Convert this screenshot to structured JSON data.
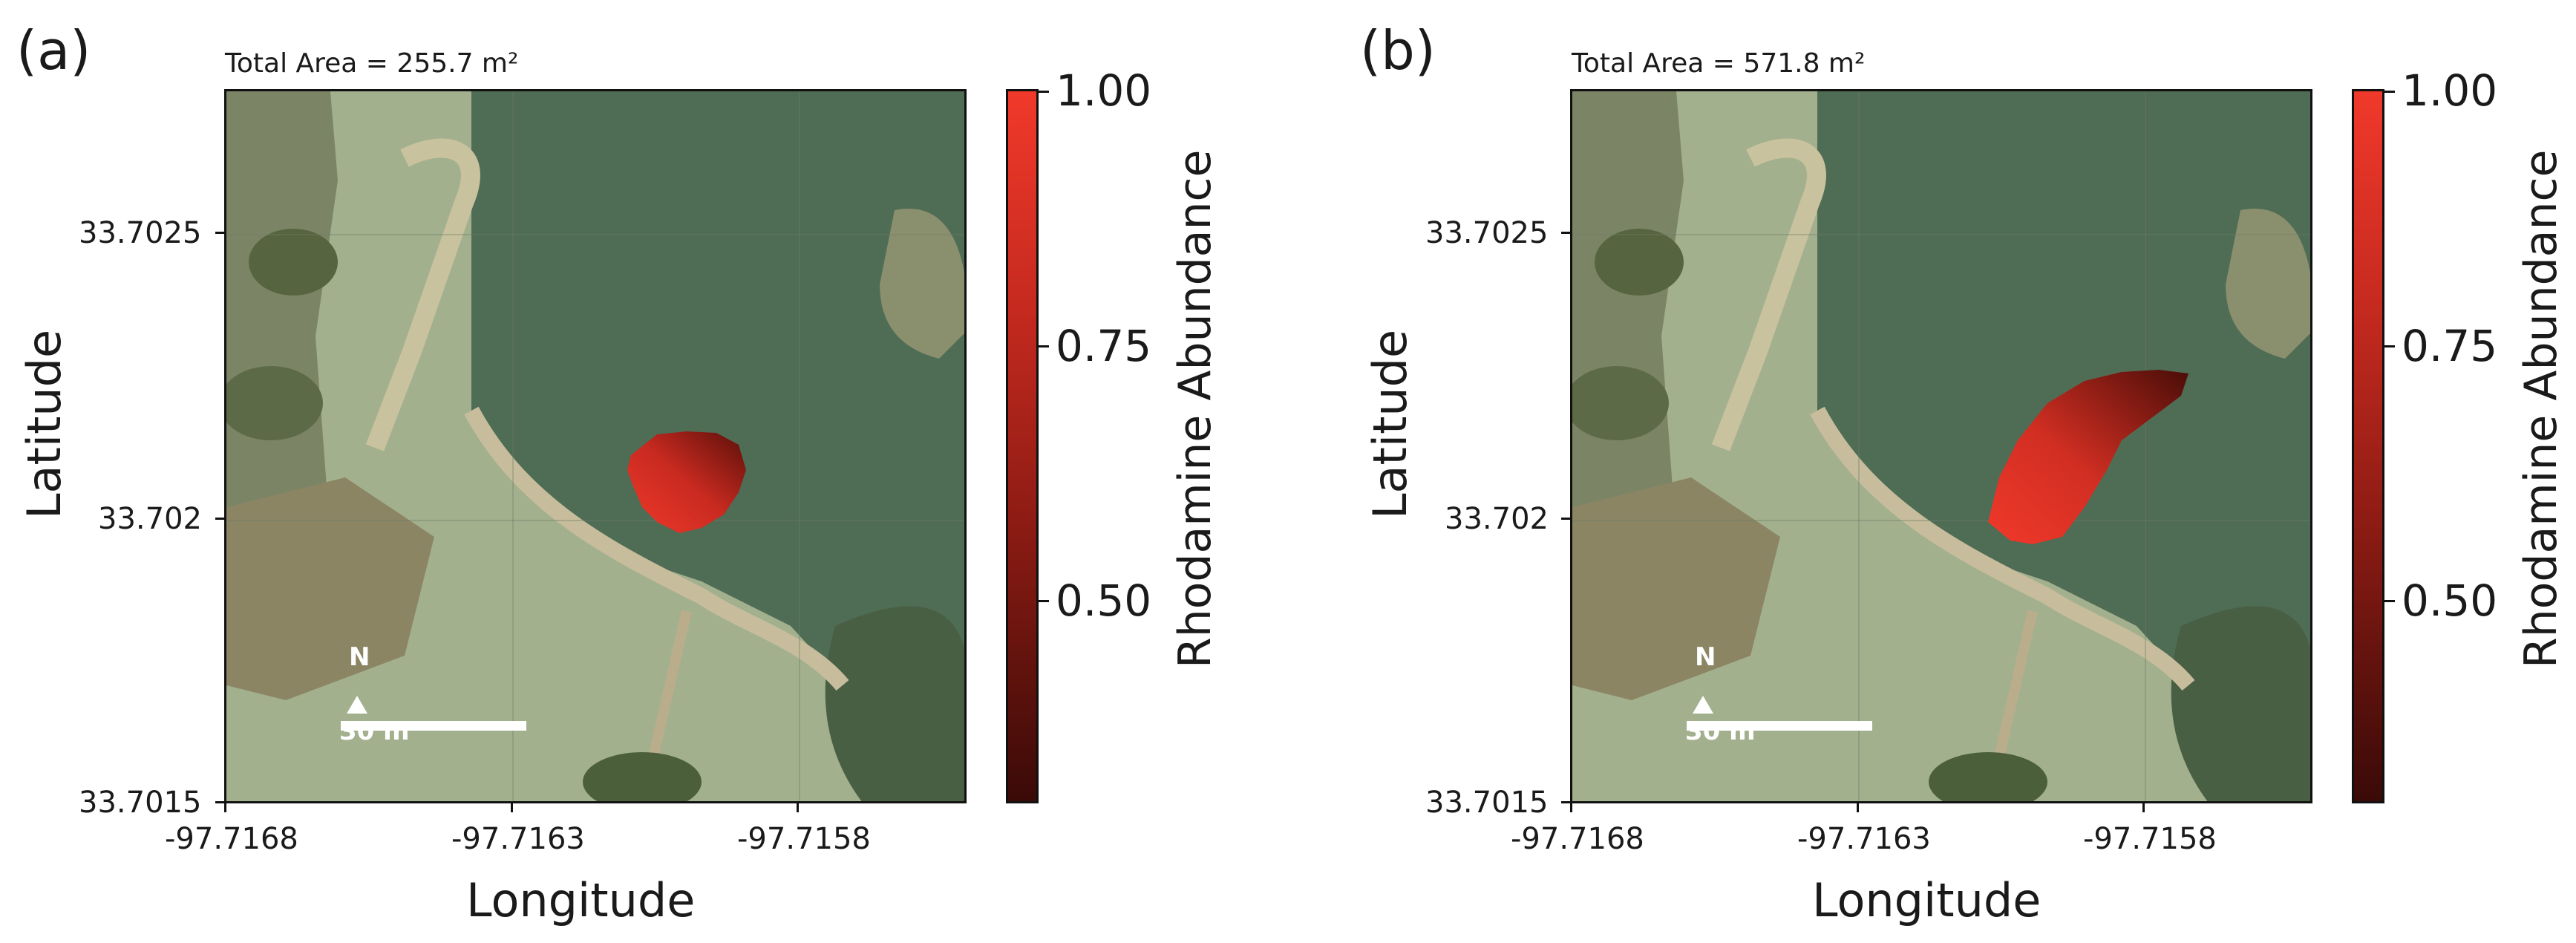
{
  "colors": {
    "accent": "#e8382c",
    "cmap_low": "#3a0a07",
    "cmap_mid": "#8e1c14",
    "cmap_high": "#f0392b",
    "field": "#9fae8a",
    "water": "#4f6c55",
    "trees": "#4a5f3a",
    "path": "#c7bd9c"
  },
  "colorbar": {
    "label": "Rhodamine Abundance",
    "ticks": [
      "1.00",
      "0.75",
      "0.50"
    ],
    "range": [
      0.3,
      1.0
    ]
  },
  "chart_data": [
    {
      "type": "heatmap",
      "panel": "(a)",
      "annotation": "Total Area = 255.7 m²",
      "xlabel": "Longitude",
      "ylabel": "Latitude",
      "xticks": [
        "-97.7168",
        "-97.7163",
        "-97.7158"
      ],
      "yticks": [
        "33.7025",
        "33.702",
        "33.7015"
      ],
      "xlim": [
        -97.7168,
        -97.71551
      ],
      "ylim": [
        33.7015,
        33.70275
      ],
      "total_area_m2": 255.7,
      "plume_centroid": {
        "lon": -97.71599,
        "lat": 33.70209
      },
      "scalebar": {
        "north": "N",
        "label": "30 m"
      },
      "colorbar_label": "Rhodamine Abundance",
      "colorbar_ticks": [
        "1.00",
        "0.75",
        "0.50"
      ]
    },
    {
      "type": "heatmap",
      "panel": "(b)",
      "annotation": "Total Area = 571.8 m²",
      "xlabel": "Longitude",
      "ylabel": "Latitude",
      "xticks": [
        "-97.7168",
        "-97.7163",
        "-97.7158"
      ],
      "yticks": [
        "33.7025",
        "33.702",
        "33.7015"
      ],
      "xlim": [
        -97.7168,
        -97.71551
      ],
      "ylim": [
        33.7015,
        33.70275
      ],
      "total_area_m2": 571.8,
      "plume_centroid": {
        "lon": -97.71592,
        "lat": 33.70216
      },
      "scalebar": {
        "north": "N",
        "label": "30 m"
      },
      "colorbar_label": "Rhodamine Abundance",
      "colorbar_ticks": [
        "1.00",
        "0.75",
        "0.50"
      ]
    }
  ]
}
